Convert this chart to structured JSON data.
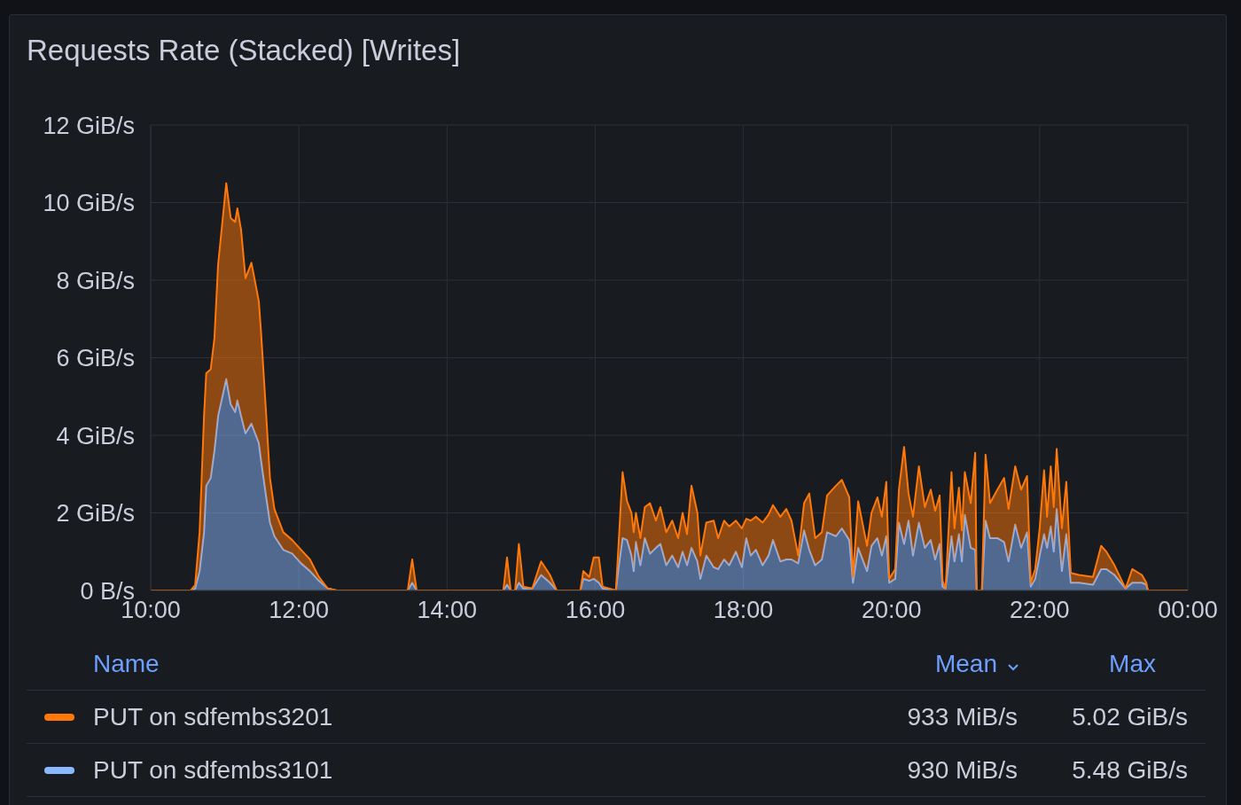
{
  "chart_data": {
    "type": "area",
    "title": "Requests Rate (Stacked) [Writes]",
    "stacked": true,
    "grid": true,
    "legend": "bottom",
    "xlim": [
      10,
      24
    ],
    "xticks": [
      {
        "value": 10,
        "label": "10:00"
      },
      {
        "value": 12,
        "label": "12:00"
      },
      {
        "value": 14,
        "label": "14:00"
      },
      {
        "value": 16,
        "label": "16:00"
      },
      {
        "value": 18,
        "label": "18:00"
      },
      {
        "value": 20,
        "label": "20:00"
      },
      {
        "value": 22,
        "label": "22:00"
      },
      {
        "value": 24,
        "label": "00:00"
      }
    ],
    "ylim": [
      0,
      12
    ],
    "yticks": [
      {
        "value": 0,
        "label": "0 B/s"
      },
      {
        "value": 2,
        "label": "2 GiB/s"
      },
      {
        "value": 4,
        "label": "4 GiB/s"
      },
      {
        "value": 6,
        "label": "6 GiB/s"
      },
      {
        "value": 8,
        "label": "8 GiB/s"
      },
      {
        "value": 10,
        "label": "10 GiB/s"
      },
      {
        "value": 12,
        "label": "12 GiB/s"
      }
    ],
    "x": [
      10.0,
      10.54,
      10.6,
      10.66,
      10.72,
      10.75,
      10.81,
      10.86,
      10.91,
      11.02,
      11.08,
      11.14,
      11.17,
      11.22,
      11.28,
      11.36,
      11.46,
      11.49,
      11.56,
      11.61,
      11.67,
      11.79,
      11.91,
      12.03,
      12.15,
      12.27,
      12.39,
      12.51,
      13.47,
      13.53,
      13.59,
      14.76,
      14.81,
      14.86,
      14.92,
      14.97,
      15.03,
      15.15,
      15.27,
      15.39,
      15.48,
      15.8,
      15.84,
      15.92,
      15.98,
      16.05,
      16.1,
      16.28,
      16.31,
      16.37,
      16.43,
      16.49,
      16.52,
      16.55,
      16.61,
      16.67,
      16.74,
      16.82,
      16.88,
      16.96,
      17.04,
      17.12,
      17.18,
      17.24,
      17.3,
      17.38,
      17.42,
      17.5,
      17.6,
      17.66,
      17.74,
      17.81,
      17.9,
      17.98,
      18.04,
      18.1,
      18.17,
      18.26,
      18.34,
      18.4,
      18.5,
      18.58,
      18.65,
      18.74,
      18.82,
      18.89,
      18.97,
      19.06,
      19.13,
      19.25,
      19.33,
      19.43,
      19.48,
      19.55,
      19.67,
      19.73,
      19.81,
      19.87,
      19.93,
      19.97,
      20.05,
      20.1,
      20.17,
      20.23,
      20.29,
      20.37,
      20.45,
      20.53,
      20.59,
      20.65,
      20.69,
      20.73,
      20.81,
      20.85,
      20.91,
      20.95,
      20.99,
      21.07,
      21.13,
      21.15,
      21.22,
      21.27,
      21.33,
      21.43,
      21.52,
      21.58,
      21.67,
      21.75,
      21.83,
      21.88,
      21.94,
      22.0,
      22.06,
      22.1,
      22.15,
      22.19,
      22.23,
      22.3,
      22.36,
      22.42,
      22.53,
      22.72,
      22.83,
      22.9,
      23.01,
      23.16,
      23.25,
      23.38,
      23.44,
      23.46,
      24.0
    ],
    "series": [
      {
        "name": "PUT on sdfembs3101",
        "color": "#8ab8ff",
        "values": [
          0,
          0,
          0.05,
          0.5,
          1.5,
          2.7,
          2.9,
          3.6,
          4.5,
          5.45,
          4.8,
          4.6,
          4.9,
          4.5,
          4.05,
          4.3,
          3.8,
          3.35,
          2.4,
          1.75,
          1.4,
          1.05,
          0.95,
          0.7,
          0.5,
          0.25,
          0.05,
          0,
          0,
          0.2,
          0,
          0,
          0.15,
          0,
          0,
          0.2,
          0.05,
          0.05,
          0.4,
          0.2,
          0,
          0,
          0.3,
          0.25,
          0.3,
          0.2,
          0.05,
          0,
          0.5,
          1.35,
          1.3,
          0.9,
          0.5,
          1.25,
          0.65,
          1.35,
          0.95,
          1.1,
          1.2,
          0.65,
          0.9,
          0.6,
          1.0,
          0.65,
          1.1,
          0.75,
          0.3,
          0.9,
          0.6,
          0.55,
          0.8,
          0.65,
          1.0,
          0.6,
          1.35,
          0.9,
          1.05,
          0.65,
          0.9,
          1.3,
          0.75,
          0.8,
          0.8,
          0.7,
          1.55,
          1.05,
          0.65,
          0.8,
          1.5,
          1.4,
          1.6,
          1.3,
          0.2,
          1.1,
          0.5,
          1.15,
          1.35,
          0.9,
          1.4,
          0.2,
          0.3,
          1.75,
          1.2,
          1.8,
          0.9,
          1.75,
          1.1,
          1.3,
          0.8,
          1.2,
          0.1,
          0.05,
          1.4,
          0.75,
          1.45,
          0.75,
          1.95,
          1.1,
          1.05,
          0,
          0,
          1.8,
          1.35,
          1.35,
          1.25,
          0.75,
          1.7,
          1.1,
          1.5,
          0.1,
          0.3,
          0.9,
          1.45,
          1.1,
          1.65,
          1.0,
          2.1,
          0.5,
          1.45,
          0.2,
          0.2,
          0.15,
          0.55,
          0.55,
          0.4,
          0.05,
          0.2,
          0.2,
          0.15,
          0,
          0
        ]
      },
      {
        "name": "PUT on sdfembs3201",
        "color": "#ff780a",
        "values": [
          0,
          0,
          0.09,
          1.0,
          3.0,
          2.9,
          2.8,
          2.9,
          3.9,
          5.05,
          4.8,
          4.9,
          4.95,
          4.8,
          4.0,
          4.15,
          3.65,
          3.3,
          2.1,
          1.15,
          0.7,
          0.45,
          0.35,
          0.35,
          0.3,
          0.1,
          0,
          0,
          0,
          0.6,
          0,
          0,
          0.7,
          0,
          0,
          1.0,
          0.05,
          0,
          0.35,
          0.2,
          0,
          0,
          0.2,
          0.1,
          0.55,
          0.65,
          0.05,
          0,
          0.5,
          1.7,
          1.0,
          1.1,
          1.0,
          0.75,
          0.7,
          0.8,
          1.3,
          0.7,
          0.95,
          0.85,
          0.9,
          0.75,
          1.0,
          0.8,
          1.6,
          1.25,
          0.6,
          0.85,
          1.2,
          0.8,
          1.0,
          1.0,
          0.8,
          1.0,
          0.5,
          0.9,
          0.85,
          1.1,
          1.05,
          0.9,
          1.15,
          1.3,
          1.0,
          0.2,
          0.7,
          1.45,
          0.7,
          0.7,
          0.95,
          1.3,
          1.25,
          1.1,
          0.15,
          1.2,
          0.65,
          0.85,
          1.05,
          1.0,
          1.4,
          0.1,
          0.25,
          0.85,
          2.5,
          0.7,
          1.0,
          1.45,
          1.05,
          1.3,
          1.25,
          1.25,
          0.15,
          0,
          1.65,
          0.85,
          1.2,
          0.8,
          1.1,
          1.15,
          2.5,
          0,
          0,
          1.7,
          0.9,
          1.25,
          1.65,
          1.35,
          1.5,
          1.5,
          1.45,
          0.1,
          0.25,
          0.7,
          1.65,
          0.8,
          1.55,
          1.15,
          1.55,
          1.1,
          1.35,
          0.25,
          0.2,
          0.2,
          0.6,
          0.45,
          0.25,
          0,
          0.35,
          0.2,
          0.05,
          0,
          0
        ]
      }
    ],
    "annotations": [
      "Name",
      "Mean",
      "Max",
      "933 MiB/s",
      "5.02 GiB/s",
      "930 MiB/s",
      "5.48 GiB/s"
    ]
  }
}
